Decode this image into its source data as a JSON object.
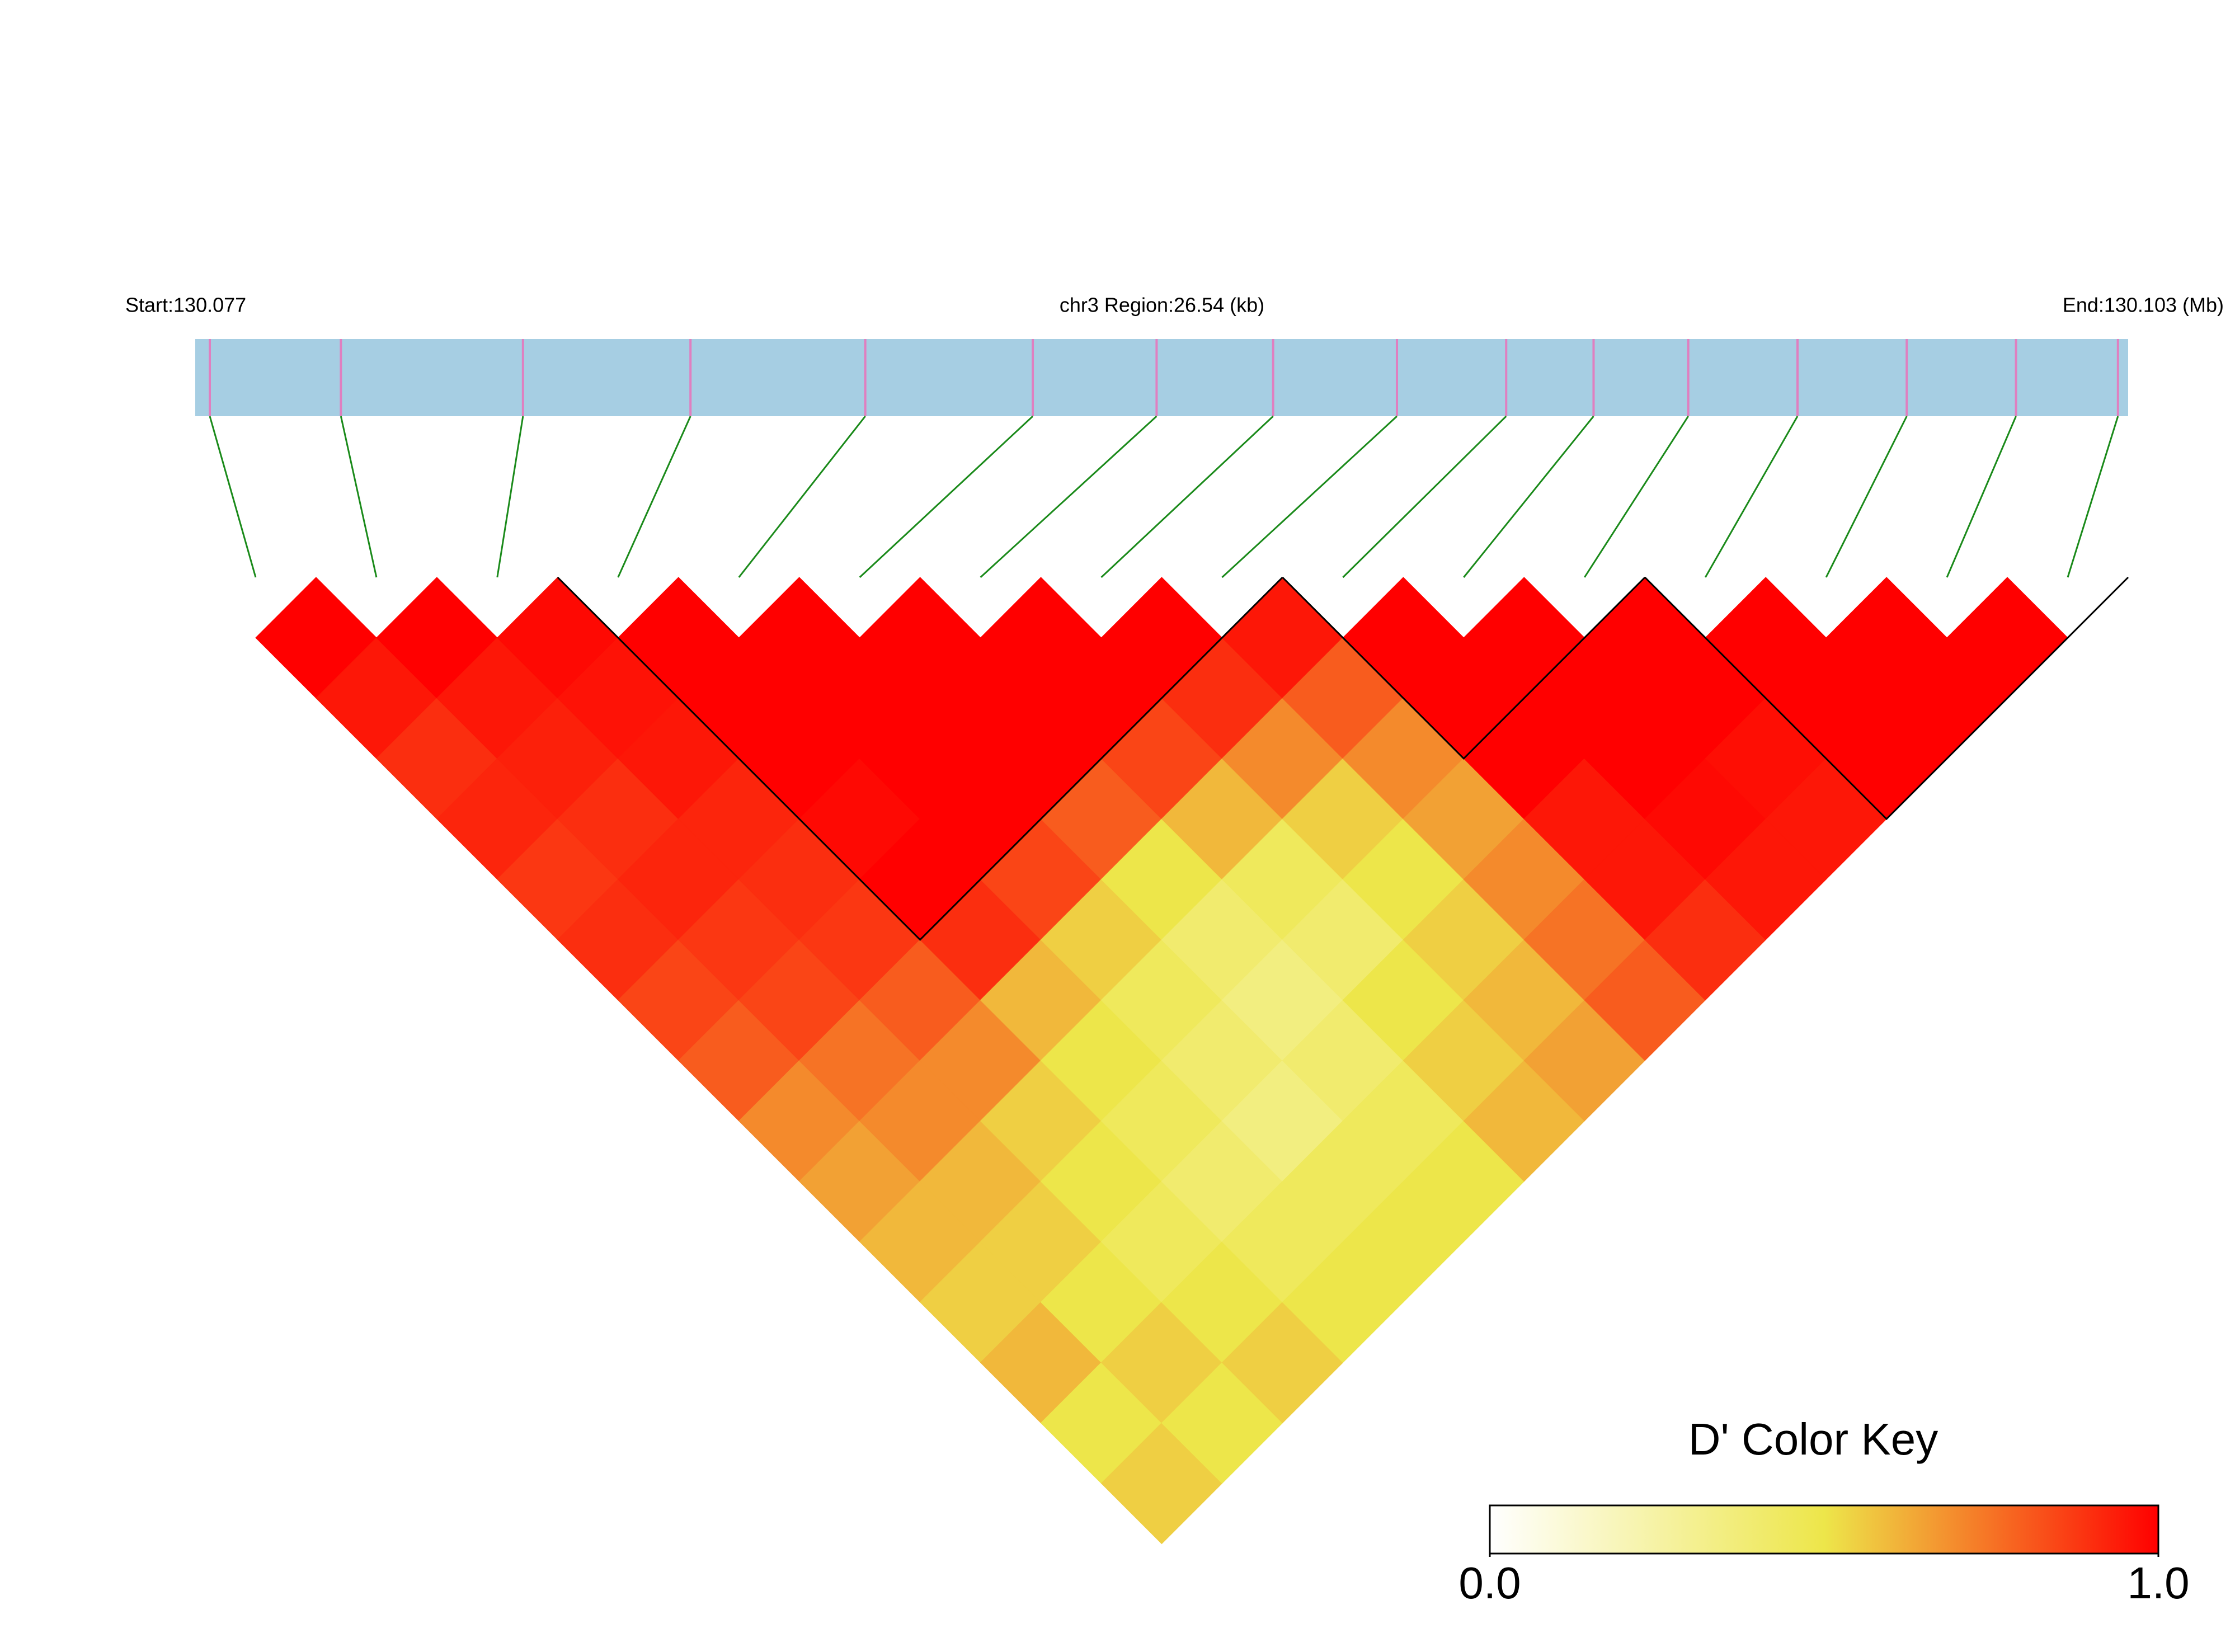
{
  "chart_data": {
    "type": "ld-heatmap",
    "start_label": "Start:130.077",
    "region_label": "chr3 Region:26.54 (kb)",
    "end_label": "End:130.103 (Mb)",
    "xlim": [
      130.077,
      130.10354
    ],
    "positions": [
      130.0772,
      130.079,
      130.0815,
      130.0838,
      130.0862,
      130.0885,
      130.0902,
      130.0918,
      130.0935,
      130.095,
      130.0962,
      130.0975,
      130.099,
      130.1005,
      130.102,
      130.1034
    ],
    "dprime": [
      [
        1,
        0.95,
        0.9,
        0.92,
        0.88,
        0.9,
        0.85,
        0.8,
        0.7,
        0.65,
        0.6,
        0.55,
        0.6,
        0.5,
        0.55
      ],
      [
        1,
        0.95,
        0.93,
        0.9,
        0.92,
        0.88,
        0.85,
        0.75,
        0.7,
        0.6,
        0.55,
        0.5,
        0.55,
        0.5
      ],
      [
        0.98,
        0.96,
        0.95,
        0.92,
        0.9,
        0.88,
        0.8,
        0.7,
        0.55,
        0.5,
        0.45,
        0.5,
        0.55
      ],
      [
        1,
        1,
        1,
        0.98,
        1,
        0.9,
        0.6,
        0.5,
        0.45,
        0.4,
        0.45,
        0.5
      ],
      [
        1,
        1,
        1,
        1,
        0.85,
        0.55,
        0.45,
        0.4,
        0.35,
        0.45,
        0.5
      ],
      [
        1,
        1,
        1,
        0.8,
        0.5,
        0.4,
        0.35,
        0.4,
        0.45,
        0.5
      ],
      [
        1,
        1,
        0.85,
        0.6,
        0.45,
        0.4,
        0.5,
        0.55,
        0.6
      ],
      [
        1,
        0.9,
        0.7,
        0.55,
        0.5,
        0.55,
        0.6,
        0.65
      ],
      [
        0.95,
        0.8,
        0.7,
        0.65,
        0.7,
        0.75,
        0.8
      ],
      [
        1,
        1,
        1,
        0.95,
        0.95,
        0.9
      ],
      [
        1,
        1,
        1,
        0.98,
        0.95
      ],
      [
        1,
        1,
        0.97,
        0.95
      ],
      [
        1,
        1,
        1
      ],
      [
        1,
        1
      ],
      [
        1
      ]
    ],
    "blocks": [
      [
        3,
        8
      ],
      [
        9,
        11
      ],
      [
        12,
        15
      ]
    ],
    "key_title": "D' Color Key",
    "key_lim": [
      0,
      1
    ],
    "key_ticks": [
      {
        "value": 0,
        "label": "0.0"
      },
      {
        "value": 1,
        "label": "1.0"
      }
    ],
    "colors": [
      "#ffffff",
      "#ede64a",
      "#ff0000"
    ],
    "bar_color": "#a6cee3",
    "snp_color": "#e07fc0",
    "link_color": "#1a8a1a"
  }
}
